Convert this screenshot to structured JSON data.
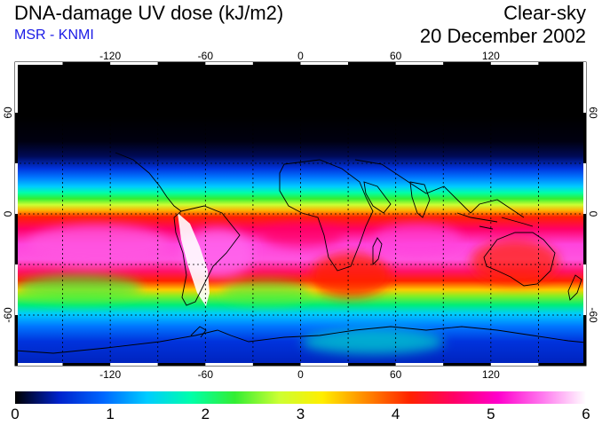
{
  "header": {
    "title": "DNA-damage UV dose (kJ/m2)",
    "subtitle": "MSR - KNMI",
    "condition": "Clear-sky",
    "date": "20 December 2002"
  },
  "map": {
    "projection": "equirectangular",
    "lon_range": [
      -180,
      180
    ],
    "lat_range": [
      -90,
      90
    ],
    "lon_ticks": [
      "-120",
      "-60",
      "0",
      "60",
      "120"
    ],
    "lat_ticks_left": [
      "60",
      "0",
      "-60"
    ],
    "lat_ticks_right": [
      "60",
      "0",
      "-60"
    ],
    "gridlines": "dashed every 30 degrees"
  },
  "colorbar": {
    "ticks": [
      "0",
      "1",
      "2",
      "3",
      "4",
      "5",
      "6"
    ],
    "min": 0,
    "max": 6,
    "colors": [
      "#000000",
      "#0022cc",
      "#0066ff",
      "#00ccff",
      "#00ffaa",
      "#33ee33",
      "#ccff33",
      "#ffee00",
      "#ff8800",
      "#ff2200",
      "#ff0066",
      "#ff00cc",
      "#ff77ee",
      "#ffffff"
    ]
  },
  "colors": {
    "accent_blue": "#1a1ae6"
  }
}
